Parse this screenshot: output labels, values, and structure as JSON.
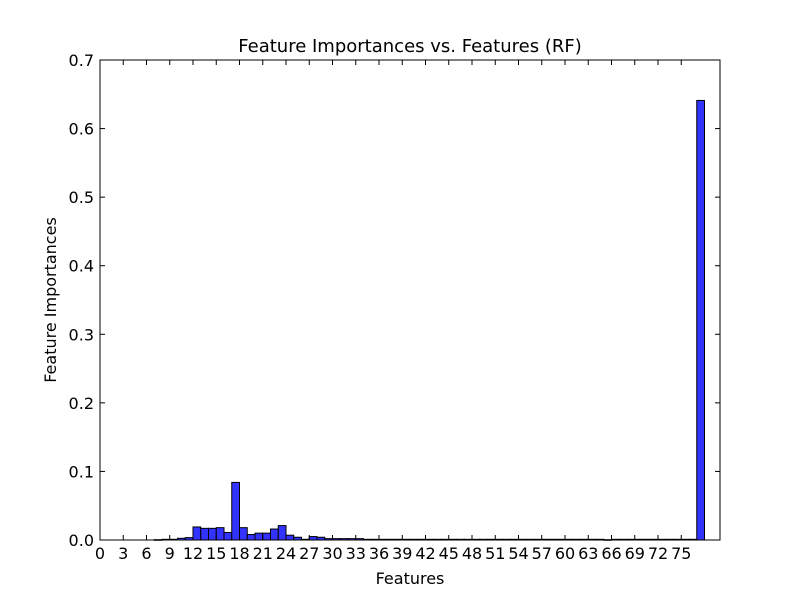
{
  "chart_data": {
    "type": "bar",
    "title": "Feature Importances vs. Features (RF)",
    "xlabel": "Features",
    "ylabel": "Feature Importances",
    "xlim": [
      0,
      80
    ],
    "ylim": [
      0,
      0.7
    ],
    "xticks": [
      0,
      3,
      6,
      9,
      12,
      15,
      18,
      21,
      24,
      27,
      30,
      33,
      36,
      39,
      42,
      45,
      48,
      51,
      54,
      57,
      60,
      63,
      66,
      69,
      72,
      75
    ],
    "yticks": [
      "0.0",
      "0.1",
      "0.2",
      "0.3",
      "0.4",
      "0.5",
      "0.6",
      "0.7"
    ],
    "grid": false,
    "bar_color": "#3333ff",
    "x": [
      0,
      1,
      2,
      3,
      4,
      5,
      6,
      7,
      8,
      9,
      10,
      11,
      12,
      13,
      14,
      15,
      16,
      17,
      18,
      19,
      20,
      21,
      22,
      23,
      24,
      25,
      26,
      27,
      28,
      29,
      30,
      31,
      32,
      33,
      34,
      35,
      36,
      37,
      38,
      39,
      40,
      41,
      42,
      43,
      44,
      45,
      46,
      47,
      48,
      49,
      50,
      51,
      52,
      53,
      54,
      55,
      56,
      57,
      58,
      59,
      60,
      61,
      62,
      63,
      64,
      65,
      66,
      67,
      68,
      69,
      70,
      71,
      72,
      73,
      74,
      75,
      76,
      77
    ],
    "values": [
      0,
      0,
      0,
      0,
      0,
      0,
      0,
      0.0005,
      0.001,
      0.001,
      0.0025,
      0.0035,
      0.019,
      0.017,
      0.017,
      0.018,
      0.011,
      0.084,
      0.018,
      0.008,
      0.01,
      0.01,
      0.016,
      0.021,
      0.007,
      0.004,
      0.001,
      0.005,
      0.004,
      0.002,
      0.002,
      0.002,
      0.002,
      0.002,
      0.001,
      0.001,
      0.001,
      0.001,
      0.001,
      0.001,
      0.001,
      0.001,
      0.001,
      0.001,
      0.001,
      0.001,
      0.001,
      0.001,
      0.001,
      0.001,
      0.001,
      0.001,
      0.001,
      0.001,
      0.001,
      0.001,
      0.001,
      0.001,
      0.001,
      0.001,
      0.001,
      0.001,
      0.001,
      0.001,
      0.001,
      0.0005,
      0.001,
      0.001,
      0.001,
      0.001,
      0.001,
      0.001,
      0.001,
      0.001,
      0.001,
      0.001,
      0.001,
      0.641
    ]
  }
}
